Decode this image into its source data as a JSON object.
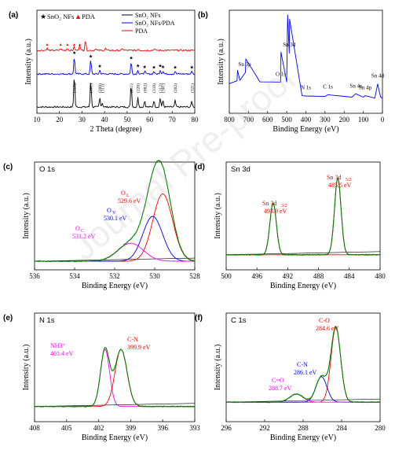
{
  "watermark": "Journal Pre-proof",
  "chart_data": [
    {
      "id": "a",
      "panel_label": "(a)",
      "type": "line",
      "xlabel": "2 Theta (degree)",
      "ylabel": "Intensity (a.u.)",
      "xlim": [
        10,
        80
      ],
      "xticks": [
        10,
        20,
        30,
        40,
        50,
        60,
        70,
        80
      ],
      "marker_legend": [
        {
          "symbol": "★",
          "label": "SnO₂ NFs",
          "color": "#000000"
        },
        {
          "symbol": "▲",
          "label": "PDA",
          "color": "#ff0000"
        }
      ],
      "series": [
        {
          "name": "SnO₂ NFs",
          "color": "#000000",
          "offset": 0,
          "x": [
            10,
            26.6,
            33.9,
            37.9,
            39.0,
            51.8,
            54.8,
            57.8,
            61.9,
            64.7,
            65.9,
            71.3,
            78.7,
            80
          ],
          "y": [
            0,
            100,
            80,
            28,
            12,
            70,
            28,
            20,
            20,
            28,
            20,
            20,
            18,
            0
          ]
        },
        {
          "name": "SnO₂ NFs/PDA",
          "color": "#0000ff",
          "offset": 1,
          "x": [
            10,
            26.6,
            33.9,
            37.9,
            51.8,
            54.8,
            57.8,
            61.9,
            64.7,
            65.9,
            71.3,
            78.7,
            80
          ],
          "y": [
            0,
            100,
            80,
            22,
            70,
            24,
            18,
            16,
            24,
            18,
            16,
            16,
            0
          ]
        },
        {
          "name": "PDA",
          "color": "#ff0000",
          "offset": 2,
          "x": [
            10,
            14.5,
            20.5,
            23.5,
            26.5,
            29,
            31.5,
            36,
            40.5,
            48,
            55,
            62,
            80
          ],
          "y": [
            0,
            14,
            12,
            16,
            22,
            40,
            70,
            12,
            12,
            12,
            10,
            10,
            0
          ]
        }
      ],
      "peak_labels": [
        "(110)",
        "(101)",
        "(200)",
        "(111)",
        "(211)",
        "(220)",
        "(002)",
        "(310)",
        "(112)",
        "(301)",
        "(202)",
        "(321)"
      ],
      "peak_positions": [
        26.6,
        33.9,
        37.9,
        39.0,
        51.8,
        54.8,
        57.8,
        61.9,
        64.7,
        65.9,
        71.3,
        78.7
      ]
    },
    {
      "id": "b",
      "panel_label": "(b)",
      "type": "line",
      "xlabel": "Binding Energy (eV)",
      "ylabel": "Intensity (a.u.)",
      "xlim": [
        800,
        0
      ],
      "xticks": [
        800,
        700,
        600,
        500,
        400,
        300,
        200,
        100,
        0
      ],
      "series": [
        {
          "name": "survey",
          "color": "#0000ff",
          "x": [
            800,
            760,
            757,
            745,
            716,
            714,
            640,
            532,
            530,
            500,
            496,
            495,
            487,
            485,
            420,
            400,
            300,
            285,
            160,
            140,
            100,
            90,
            40,
            25,
            10,
            0
          ],
          "y": [
            18,
            22,
            34,
            22,
            32,
            48,
            20,
            20,
            56,
            20,
            90,
            100,
            55,
            95,
            4,
            4,
            3,
            5,
            2,
            6,
            2,
            4,
            1,
            18,
            2,
            1
          ]
        }
      ],
      "annotations": [
        {
          "label": "Sn 3p",
          "x": 720
        },
        {
          "label": "O 1s",
          "x": 531
        },
        {
          "label": "Sn 3d",
          "x": 487
        },
        {
          "label": "N 1s",
          "x": 400
        },
        {
          "label": "C 1s",
          "x": 285
        },
        {
          "label": "Sn 4s",
          "x": 139
        },
        {
          "label": "Sn 4p",
          "x": 90
        },
        {
          "label": "Sn 4d",
          "x": 25
        }
      ]
    },
    {
      "id": "c",
      "panel_label": "(c)",
      "title": "O 1s",
      "type": "line",
      "xlabel": "Binding Energy (eV)",
      "ylabel": "Intensity (a.u.)",
      "xlim": [
        536,
        528
      ],
      "xticks": [
        536,
        534,
        532,
        530,
        528
      ],
      "components": [
        {
          "name": "O_L",
          "center": 529.6,
          "height": 75,
          "width": 0.7,
          "color": "#ff0000"
        },
        {
          "name": "O_V",
          "center": 530.1,
          "height": 50,
          "width": 0.7,
          "color": "#0000ff"
        },
        {
          "name": "O_C",
          "center": 531.2,
          "height": 20,
          "width": 0.9,
          "color": "#ff00ff"
        }
      ],
      "envelope_color": "#008000",
      "annotations": [
        {
          "label": "O",
          "sub": "L",
          "value": "529.6 eV",
          "color": "#ff0000"
        },
        {
          "label": "O",
          "sub": "V",
          "value": "530.1 eV",
          "color": "#0000ff"
        },
        {
          "label": "O",
          "sub": "C",
          "value": "531.2 eV",
          "color": "#ff00ff"
        }
      ]
    },
    {
      "id": "d",
      "panel_label": "(d)",
      "title": "Sn 3d",
      "type": "line",
      "xlabel": "Binding Energy (eV)",
      "ylabel": "Intensity (a.u.)",
      "xlim": [
        500,
        480
      ],
      "xticks": [
        500,
        496,
        492,
        488,
        484,
        480
      ],
      "components": [
        {
          "name": "Sn 3d3/2",
          "center": 493.9,
          "height": 62,
          "width": 0.6,
          "color": "#ff0000"
        },
        {
          "name": "Sn 3d5/2",
          "center": 485.5,
          "height": 92,
          "width": 0.6,
          "color": "#ff0000"
        }
      ],
      "envelope_color": "#008000",
      "annotations": [
        {
          "label": "Sn 3d",
          "sub": "3/2",
          "value": "493.9 eV",
          "color": "#ff0000"
        },
        {
          "label": "Sn 3d",
          "sub": "5/2",
          "value": "485.5 eV",
          "color": "#ff0000"
        }
      ]
    },
    {
      "id": "e",
      "panel_label": "(e)",
      "title": "N 1s",
      "type": "line",
      "xlabel": "Binding Energy (eV)",
      "ylabel": "Intensity (a.u.)",
      "xlim": [
        408,
        393
      ],
      "xticks": [
        408,
        405,
        402,
        399,
        396,
        393
      ],
      "components": [
        {
          "name": "NH3+",
          "center": 401.4,
          "height": 68,
          "width": 0.6,
          "color": "#ff00ff"
        },
        {
          "name": "C-N",
          "center": 399.9,
          "height": 68,
          "width": 0.8,
          "color": "#ff0000"
        }
      ],
      "envelope_color": "#008000",
      "annotations": [
        {
          "label": "NH3⁺",
          "value": "401.4 eV",
          "color": "#ff00ff"
        },
        {
          "label": "C-N",
          "value": "399.9 eV",
          "color": "#ff0000"
        }
      ]
    },
    {
      "id": "f",
      "panel_label": "(f)",
      "title": "C 1s",
      "type": "line",
      "xlabel": "Binding Energy (eV)",
      "ylabel": "Intensity (a.u.)",
      "xlim": [
        296,
        280
      ],
      "xticks": [
        296,
        292,
        288,
        284,
        280
      ],
      "components": [
        {
          "name": "C-O",
          "center": 284.6,
          "height": 94,
          "width": 0.7,
          "color": "#ff0000"
        },
        {
          "name": "C-N",
          "center": 286.1,
          "height": 32,
          "width": 0.8,
          "color": "#0000ff"
        },
        {
          "name": "C=O",
          "center": 288.7,
          "height": 10,
          "width": 1.0,
          "color": "#ff00ff"
        }
      ],
      "envelope_color": "#008000",
      "annotations": [
        {
          "label": "C-O",
          "value": "284.6 eV",
          "color": "#ff0000"
        },
        {
          "label": "C-N",
          "value": "286.1 eV",
          "color": "#0000ff"
        },
        {
          "label": "C=O",
          "value": "288.7 eV",
          "color": "#ff00ff"
        }
      ]
    }
  ]
}
